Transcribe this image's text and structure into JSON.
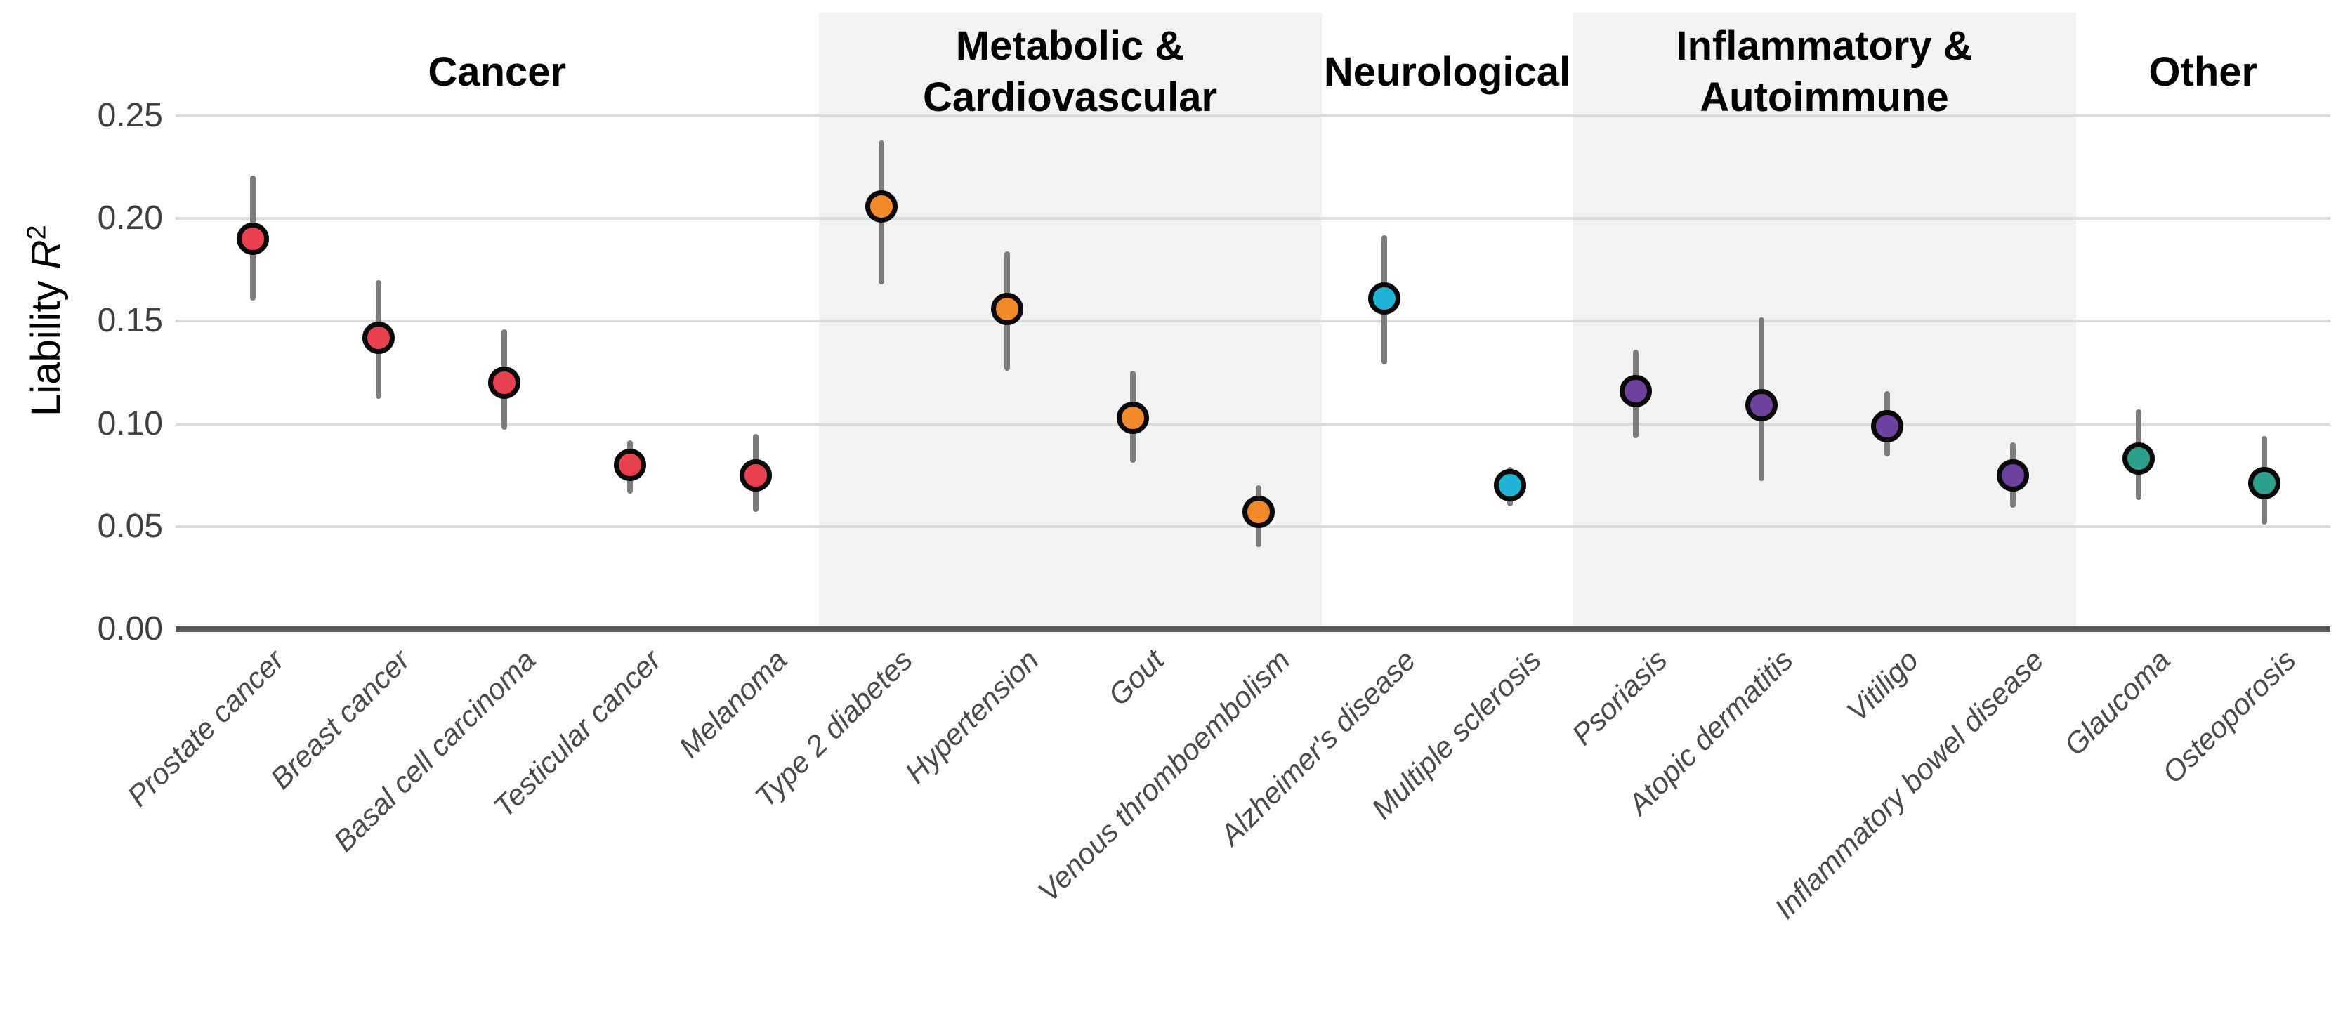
{
  "chart_data": {
    "type": "scatter",
    "title": "",
    "xlabel": "",
    "ylabel": "Liability R^2",
    "ylabel_parts": {
      "text": "Liability ",
      "math": "R",
      "sup": "2"
    },
    "ylim": [
      0,
      0.26
    ],
    "yticks": [
      0,
      0.05,
      0.1,
      0.15,
      0.2,
      0.25
    ],
    "ytick_labels": [
      "0.00",
      "0.05",
      "0.10",
      "0.15",
      "0.20",
      "0.25"
    ],
    "grid": "horizontal",
    "legend": "none",
    "error_bars": true,
    "colors": {
      "band_shade": "#F2F2F2",
      "band_plain": "#FFFFFF",
      "gridline": "#DCDCDC",
      "axis_line": "#595959",
      "error_bar": "#7C7C7C",
      "point_outline": "#0A0A0A",
      "x_label_text": "#4A4A4A",
      "y_tick_text": "#3F3F3F",
      "header_text": "#000000"
    },
    "groups": [
      {
        "label": "Cancer",
        "label_lines": [
          "Cancer"
        ],
        "color": "#E8404E",
        "band": "#FFFFFF"
      },
      {
        "label": "Metabolic & Cardiovascular",
        "label_lines": [
          "Metabolic &",
          "Cardiovascular"
        ],
        "color": "#F1892B",
        "band": "#F2F2F2"
      },
      {
        "label": "Neurological",
        "label_lines": [
          "Neurological"
        ],
        "color": "#21B3D6",
        "band": "#FFFFFF"
      },
      {
        "label": "Inflammatory & Autoimmune",
        "label_lines": [
          "Inflammatory &",
          "Autoimmune"
        ],
        "color": "#6F419F",
        "band": "#F2F2F2"
      },
      {
        "label": "Other",
        "label_lines": [
          "Other"
        ],
        "color": "#2BA18D",
        "band": "#FFFFFF"
      }
    ],
    "points": [
      {
        "label": "Prostate cancer",
        "group": 0,
        "value": 0.19,
        "ci_low": 0.16,
        "ci_high": 0.221
      },
      {
        "label": "Breast cancer",
        "group": 0,
        "value": 0.142,
        "ci_low": 0.112,
        "ci_high": 0.17
      },
      {
        "label": "Basal cell carcinoma",
        "group": 0,
        "value": 0.12,
        "ci_low": 0.097,
        "ci_high": 0.146
      },
      {
        "label": "Testicular cancer",
        "group": 0,
        "value": 0.08,
        "ci_low": 0.066,
        "ci_high": 0.092
      },
      {
        "label": "Melanoma",
        "group": 0,
        "value": 0.075,
        "ci_low": 0.057,
        "ci_high": 0.095
      },
      {
        "label": "Type 2 diabetes",
        "group": 1,
        "value": 0.206,
        "ci_low": 0.168,
        "ci_high": 0.238
      },
      {
        "label": "Hypertension",
        "group": 1,
        "value": 0.156,
        "ci_low": 0.126,
        "ci_high": 0.184
      },
      {
        "label": "Gout",
        "group": 1,
        "value": 0.103,
        "ci_low": 0.081,
        "ci_high": 0.126
      },
      {
        "label": "Venous thromboembolism",
        "group": 1,
        "value": 0.057,
        "ci_low": 0.04,
        "ci_high": 0.07
      },
      {
        "label": "Alzheimer's disease",
        "group": 2,
        "value": 0.161,
        "ci_low": 0.129,
        "ci_high": 0.192
      },
      {
        "label": "Multiple sclerosis",
        "group": 2,
        "value": 0.07,
        "ci_low": 0.06,
        "ci_high": 0.079
      },
      {
        "label": "Psoriasis",
        "group": 3,
        "value": 0.116,
        "ci_low": 0.093,
        "ci_high": 0.136
      },
      {
        "label": "Atopic dermatitis",
        "group": 3,
        "value": 0.109,
        "ci_low": 0.072,
        "ci_high": 0.152
      },
      {
        "label": "Vitiligo",
        "group": 3,
        "value": 0.099,
        "ci_low": 0.084,
        "ci_high": 0.116
      },
      {
        "label": "Inflammatory bowel disease",
        "group": 3,
        "value": 0.075,
        "ci_low": 0.059,
        "ci_high": 0.091
      },
      {
        "label": "Glaucoma",
        "group": 4,
        "value": 0.083,
        "ci_low": 0.063,
        "ci_high": 0.107
      },
      {
        "label": "Osteoporosis",
        "group": 4,
        "value": 0.071,
        "ci_low": 0.051,
        "ci_high": 0.094
      }
    ]
  }
}
